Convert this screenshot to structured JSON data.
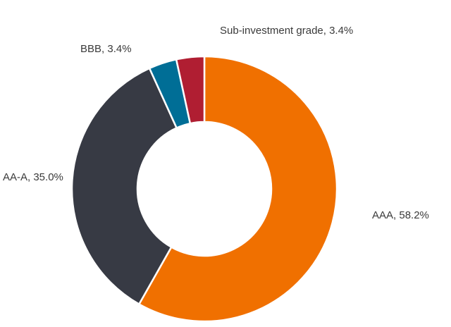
{
  "chart_data": {
    "type": "pie",
    "donut": true,
    "title": "",
    "slices": [
      {
        "label": "AAA",
        "value": 58.2,
        "display": "AAA, 58.2%",
        "color": "#F07000"
      },
      {
        "label": "AA-A",
        "value": 35.0,
        "display": "AA-A, 35.0%",
        "color": "#373A44"
      },
      {
        "label": "BBB",
        "value": 3.4,
        "display": "BBB, 3.4%",
        "color": "#006E96"
      },
      {
        "label": "Sub-investment grade",
        "value": 3.4,
        "display": "Sub-investment grade, 3.4%",
        "color": "#B01E32"
      }
    ],
    "start_angle_deg": 0,
    "direction": "clockwise",
    "legend": "none"
  }
}
